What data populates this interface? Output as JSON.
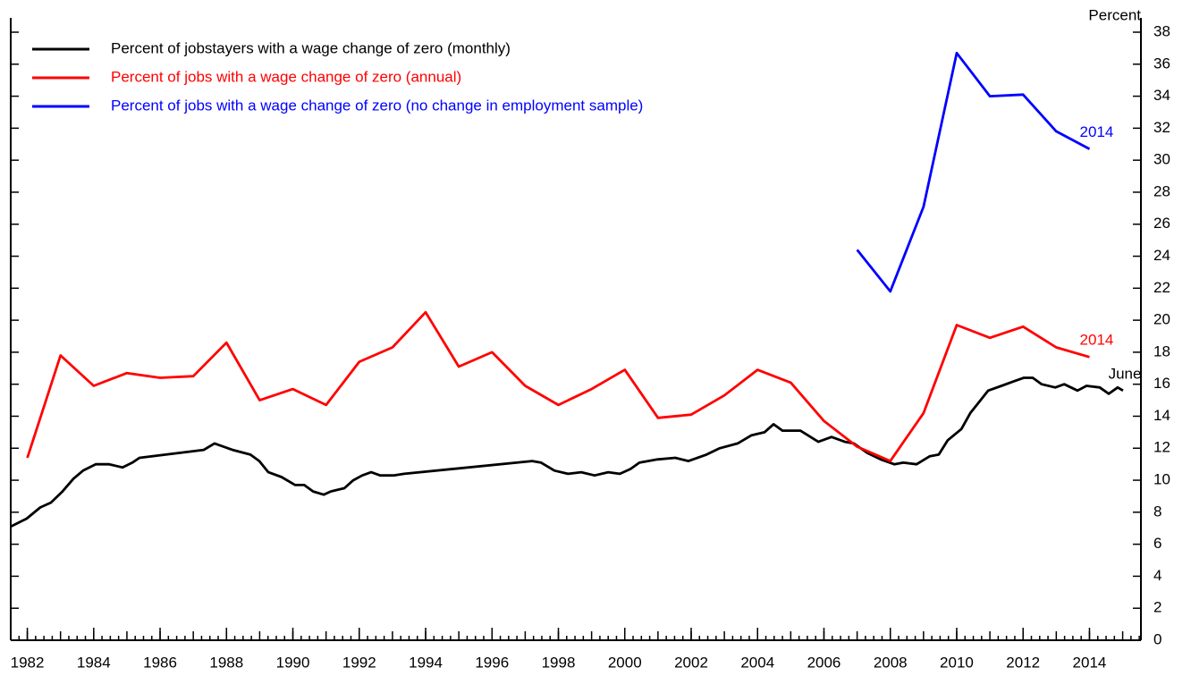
{
  "chart_data": {
    "type": "line",
    "y_label": "Percent",
    "xlim": [
      1981.5,
      2015.55
    ],
    "ylim": [
      0,
      38
    ],
    "xticks": [
      1982,
      1984,
      1986,
      1988,
      1990,
      1992,
      1994,
      1996,
      1998,
      2000,
      2002,
      2004,
      2006,
      2008,
      2010,
      2012,
      2014
    ],
    "yticks": [
      0,
      2,
      4,
      6,
      8,
      10,
      12,
      14,
      16,
      18,
      20,
      22,
      24,
      26,
      28,
      30,
      32,
      34,
      36,
      38
    ],
    "legend": "upper left",
    "series": [
      {
        "name": "Percent of jobstayers with a wage change of zero (monthly)",
        "color": "#000000",
        "end_label": "June",
        "x": [
          1981.5,
          1981.98,
          1982.39,
          1982.71,
          1983.06,
          1983.39,
          1983.68,
          1984.06,
          1984.46,
          1984.87,
          1985.16,
          1985.38,
          1987.32,
          1987.64,
          1988.18,
          1988.72,
          1988.99,
          1989.26,
          1989.66,
          1990.07,
          1990.34,
          1990.61,
          1990.93,
          1991.14,
          1991.55,
          1991.82,
          1992.09,
          1992.36,
          1992.63,
          1993.03,
          1993.35,
          1997.21,
          1997.48,
          1997.88,
          1998.29,
          1998.69,
          1999.09,
          1999.5,
          1999.85,
          2000.17,
          2000.44,
          2000.98,
          2001.52,
          2001.92,
          2002.46,
          2002.86,
          2003.4,
          2003.81,
          2004.21,
          2004.48,
          2004.75,
          2005.29,
          2005.83,
          2006.23,
          2006.63,
          2006.9,
          2007.31,
          2007.71,
          2008.12,
          2008.39,
          2008.79,
          2009.19,
          2009.46,
          2009.73,
          2010.14,
          2010.41,
          2010.68,
          2010.95,
          2011.35,
          2011.75,
          2012.02,
          2012.29,
          2012.56,
          2012.97,
          2013.24,
          2013.64,
          2013.91,
          2014.31,
          2014.58,
          2014.85,
          2015.01
        ],
        "values": [
          7.1,
          7.6,
          8.3,
          8.6,
          9.3,
          10.1,
          10.6,
          11.0,
          11.0,
          10.8,
          11.1,
          11.4,
          11.9,
          12.3,
          11.9,
          11.6,
          11.2,
          10.5,
          10.2,
          9.7,
          9.7,
          9.3,
          9.1,
          9.3,
          9.5,
          10.0,
          10.3,
          10.5,
          10.3,
          10.3,
          10.4,
          11.2,
          11.1,
          10.6,
          10.4,
          10.5,
          10.3,
          10.5,
          10.4,
          10.7,
          11.1,
          11.3,
          11.4,
          11.2,
          11.6,
          12.0,
          12.3,
          12.8,
          13.0,
          13.5,
          13.1,
          13.1,
          12.4,
          12.7,
          12.4,
          12.3,
          11.7,
          11.3,
          11.0,
          11.1,
          11.0,
          11.5,
          11.6,
          12.5,
          13.2,
          14.2,
          14.9,
          15.6,
          15.9,
          16.2,
          16.4,
          16.4,
          16.0,
          15.8,
          16.0,
          15.6,
          15.9,
          15.8,
          15.4,
          15.8,
          15.6
        ]
      },
      {
        "name": "Percent of jobs with a wage change of zero (annual)",
        "color": "#ff0000",
        "end_label": "2014",
        "x": [
          1982,
          1983,
          1984,
          1985,
          1986,
          1987,
          1988,
          1989,
          1990,
          1991,
          1992,
          1993,
          1994,
          1995,
          1996,
          1997,
          1998,
          1999,
          2000,
          2001,
          2002,
          2003,
          2004,
          2005,
          2006,
          2007,
          2008,
          2009,
          2010,
          2011,
          2012,
          2013,
          2014
        ],
        "values": [
          11.4,
          17.8,
          15.9,
          16.7,
          16.4,
          16.5,
          18.6,
          15.0,
          15.7,
          14.7,
          17.4,
          18.3,
          20.5,
          17.1,
          18.0,
          15.9,
          14.7,
          15.7,
          16.9,
          13.9,
          14.1,
          15.3,
          16.9,
          16.1,
          13.7,
          12.1,
          11.2,
          14.2,
          19.7,
          18.9,
          19.6,
          18.3,
          17.7
        ]
      },
      {
        "name": "Percent of jobs with a wage change of zero (no change in employment sample)",
        "color": "#0000ff",
        "end_label": "2014",
        "x": [
          2007,
          2008,
          2009,
          2010,
          2011,
          2012,
          2013,
          2014
        ],
        "values": [
          24.4,
          21.8,
          27.1,
          36.7,
          34.0,
          34.1,
          31.8,
          30.7
        ]
      }
    ]
  }
}
